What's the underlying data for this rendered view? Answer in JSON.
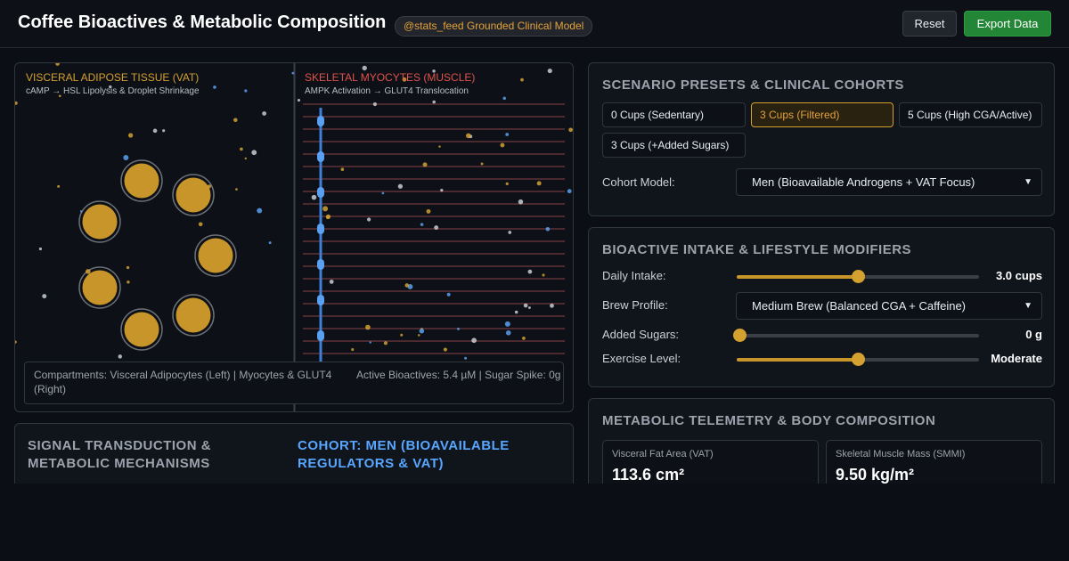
{
  "header": {
    "title": "Coffee Bioactives & Metabolic Composition",
    "badge": "@stats_feed Grounded Clinical Model",
    "buttons": [
      "Reset",
      "Export Data"
    ]
  },
  "visualization": {
    "vat": {
      "title": "VISCERAL ADIPOSE TISSUE (VAT)",
      "subtitle": "cAMP → HSL Lipolysis & Droplet Shrinkage"
    },
    "muscle": {
      "title": "SKELETAL MYOCYTES (MUSCLE)",
      "subtitle": "AMPK Activation → GLUT4 Translocation"
    },
    "legend": {
      "compartments": "Compartments: Visceral Adipocytes (Left) | Myocytes & GLUT4 (Right)",
      "status": "Active Bioactives: 5.4 µM | Sugar Spike: 0g"
    }
  },
  "mechanisms": {
    "title": "SIGNAL TRANSDUCTION & METABOLIC MECHANISMS",
    "cohort": "COHORT: MEN (BIOAVAILABLE REGULATORS & VAT)"
  },
  "presets": {
    "title": "SCENARIO PRESETS & CLINICAL COHORTS",
    "buttons": [
      "0 Cups (Sedentary)",
      "3 Cups (Filtered)",
      "5 Cups (High CGA/Active)",
      "3 Cups (+Added Sugars)"
    ],
    "cohort_label": "Cohort Model:",
    "cohort_value": "Men (Bioavailable Androgens + VAT Focus)"
  },
  "modifiers": {
    "title": "BIOACTIVE INTAKE & LIFESTYLE MODIFIERS",
    "rows": [
      {
        "label": "Daily Intake:",
        "value": "3.0 cups"
      },
      {
        "label": "Brew Profile:",
        "value": "Medium Brew (Balanced CGA + Caffeine)"
      },
      {
        "label": "Added Sugars:",
        "value": "0 g"
      },
      {
        "label": "Exercise Level:",
        "value": "Moderate"
      }
    ]
  },
  "telemetry": {
    "title": "METABOLIC TELEMETRY & BODY COMPOSITION",
    "cards": [
      {
        "label": "Visceral Fat Area (VAT)",
        "value": "113.6 cm²"
      },
      {
        "label": "Skeletal Muscle Mass (SMMI)",
        "value": "9.50 kg/m²"
      }
    ]
  }
}
